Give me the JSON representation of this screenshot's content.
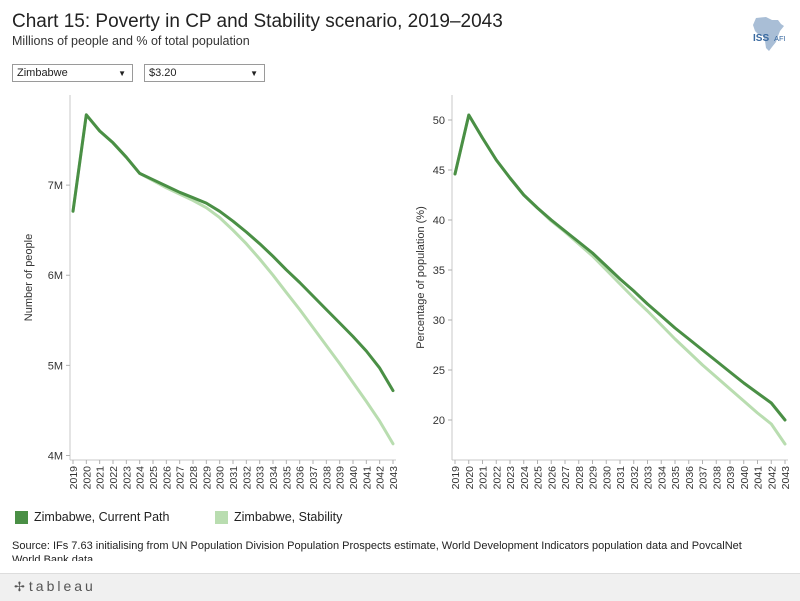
{
  "title": "Chart 15: Poverty in CP and Stability scenario, 2019–2043",
  "subtitle": "Millions of people and % of total population",
  "logo": {
    "primary": "ISS",
    "secondary": "AFI"
  },
  "filters": {
    "country": "Zimbabwe",
    "threshold": "$3.20"
  },
  "legend": [
    {
      "label": "Zimbabwe, Current Path",
      "color": "#4a8f45"
    },
    {
      "label": "Zimbabwe, Stability",
      "color": "#b9ddb0"
    }
  ],
  "source": "Source: IFs 7.63 initialising from UN Population Division Population Prospects estimate, World Development Indicators population data and PovcalNet World Bank data",
  "footer": {
    "brand": "tableau"
  },
  "chart_data": [
    {
      "type": "line",
      "title": "",
      "xlabel": "",
      "ylabel": "Number of people",
      "ylim": [
        3.95,
        8.0
      ],
      "yticks": [
        4,
        5,
        6,
        7
      ],
      "ytick_labels": [
        "4M",
        "5M",
        "6M",
        "7M"
      ],
      "x": [
        2019,
        2020,
        2021,
        2022,
        2023,
        2024,
        2025,
        2026,
        2027,
        2028,
        2029,
        2030,
        2031,
        2032,
        2033,
        2034,
        2035,
        2036,
        2037,
        2038,
        2039,
        2040,
        2041,
        2042,
        2043
      ],
      "series": [
        {
          "name": "Zimbabwe, Current Path",
          "color": "#4a8f45",
          "values": [
            6.71,
            7.78,
            7.6,
            7.47,
            7.31,
            7.13,
            7.06,
            6.99,
            6.92,
            6.86,
            6.8,
            6.71,
            6.6,
            6.48,
            6.35,
            6.21,
            6.06,
            5.92,
            5.77,
            5.62,
            5.47,
            5.32,
            5.16,
            4.97,
            4.72
          ]
        },
        {
          "name": "Zimbabwe, Stability",
          "color": "#b9ddb0",
          "values": [
            6.71,
            7.78,
            7.6,
            7.47,
            7.31,
            7.13,
            7.05,
            6.97,
            6.9,
            6.83,
            6.75,
            6.64,
            6.5,
            6.35,
            6.18,
            6.0,
            5.81,
            5.62,
            5.42,
            5.22,
            5.02,
            4.81,
            4.6,
            4.38,
            4.13
          ]
        }
      ]
    },
    {
      "type": "line",
      "title": "",
      "xlabel": "",
      "ylabel": "Percentage of population (%)",
      "ylim": [
        16,
        52.5
      ],
      "yticks": [
        20,
        25,
        30,
        35,
        40,
        45,
        50
      ],
      "ytick_labels": [
        "20",
        "25",
        "30",
        "35",
        "40",
        "45",
        "50"
      ],
      "x": [
        2019,
        2020,
        2021,
        2022,
        2023,
        2024,
        2025,
        2026,
        2027,
        2028,
        2029,
        2030,
        2031,
        2032,
        2033,
        2034,
        2035,
        2036,
        2037,
        2038,
        2039,
        2040,
        2041,
        2042,
        2043
      ],
      "series": [
        {
          "name": "Zimbabwe, Current Path",
          "color": "#4a8f45",
          "values": [
            44.6,
            50.5,
            48.2,
            46.0,
            44.2,
            42.5,
            41.2,
            40.0,
            38.9,
            37.8,
            36.7,
            35.4,
            34.1,
            32.9,
            31.6,
            30.4,
            29.2,
            28.1,
            27.0,
            25.9,
            24.8,
            23.7,
            22.7,
            21.7,
            20.0
          ]
        },
        {
          "name": "Zimbabwe, Stability",
          "color": "#b9ddb0",
          "values": [
            44.6,
            50.5,
            48.2,
            46.0,
            44.2,
            42.5,
            41.2,
            39.9,
            38.8,
            37.6,
            36.4,
            35.0,
            33.6,
            32.2,
            30.9,
            29.5,
            28.1,
            26.8,
            25.5,
            24.3,
            23.1,
            21.9,
            20.7,
            19.6,
            17.6
          ]
        }
      ]
    }
  ]
}
